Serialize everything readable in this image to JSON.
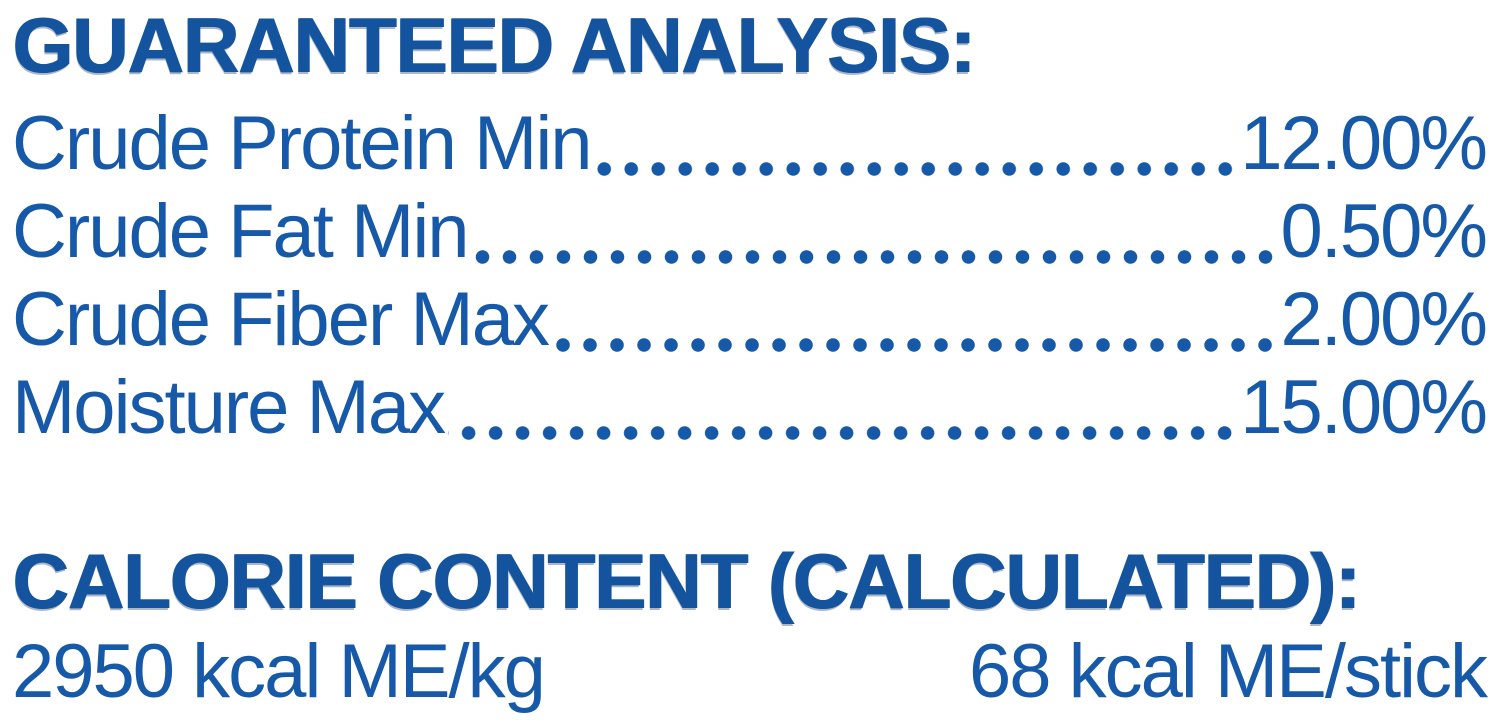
{
  "colors": {
    "text_blue": "#1659a8",
    "heading_blue": "#14549e",
    "background": "#ffffff"
  },
  "guaranteed_analysis": {
    "title": "GUARANTEED ANALYSIS:",
    "rows": [
      {
        "label": "Crude Protein Min",
        "value": "12.00%"
      },
      {
        "label": "Crude Fat Min",
        "value": "0.50%"
      },
      {
        "label": "Crude Fiber Max",
        "value": "2.00%"
      },
      {
        "label": "Moisture Max",
        "value": "15.00%"
      }
    ]
  },
  "calorie_content": {
    "title": "CALORIE CONTENT (CALCULATED):",
    "per_kg": "2950 kcal ME/kg",
    "per_stick": "68 kcal ME/stick"
  }
}
